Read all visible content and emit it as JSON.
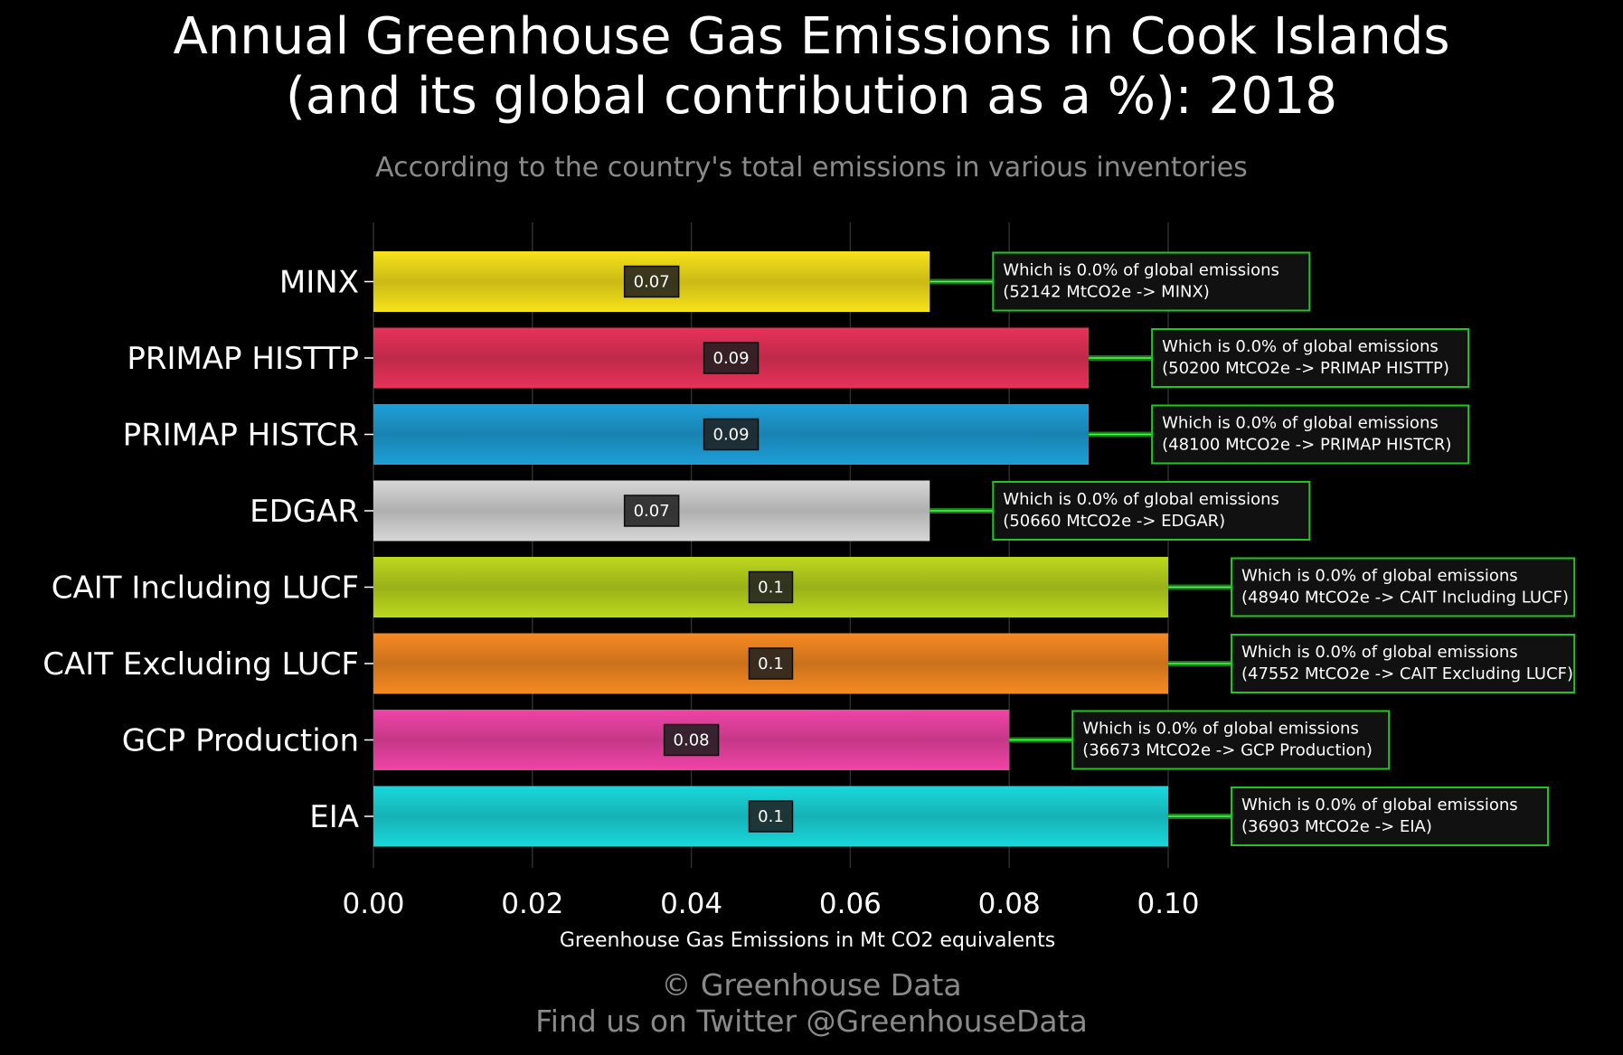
{
  "title_line1": "Annual Greenhouse Gas Emissions in Cook Islands",
  "title_line2": "(and its global contribution as a %): 2018",
  "subtitle": "According to the country's total emissions in various inventories",
  "footer_line1": "© Greenhouse Data",
  "footer_line2": "Find us on Twitter @GreenhouseData",
  "chart_data": {
    "type": "bar",
    "orientation": "horizontal",
    "xlabel": "Greenhouse Gas Emissions in Mt CO2 equivalents",
    "xlim": [
      0,
      0.1
    ],
    "xticks": [
      "0.00",
      "0.02",
      "0.04",
      "0.06",
      "0.08",
      "0.10"
    ],
    "grid": "vertical",
    "bars": [
      {
        "category": "MINX",
        "value": 0.07,
        "label": "0.07",
        "color": "#f7e21a",
        "annotation": [
          "Which is 0.0% of global emissions",
          "(52142 MtCO2e -> MINX)"
        ]
      },
      {
        "category": "PRIMAP HISTTP",
        "value": 0.09,
        "label": "0.09",
        "color": "#e8325a",
        "annotation": [
          "Which is 0.0% of global emissions",
          "(50200 MtCO2e -> PRIMAP HISTTP)"
        ]
      },
      {
        "category": "PRIMAP HISTCR",
        "value": 0.09,
        "label": "0.09",
        "color": "#1e9fd8",
        "annotation": [
          "Which is 0.0% of global emissions",
          "(48100 MtCO2e -> PRIMAP HISTCR)"
        ]
      },
      {
        "category": "EDGAR",
        "value": 0.07,
        "label": "0.07",
        "color": "#d6d6d6",
        "annotation": [
          "Which is 0.0% of global emissions",
          "(50660 MtCO2e -> EDGAR)"
        ]
      },
      {
        "category": "CAIT Including LUCF",
        "value": 0.1,
        "label": "0.1",
        "color": "#bcd81e",
        "annotation": [
          "Which is 0.0% of global emissions",
          "(48940 MtCO2e -> CAIT Including LUCF)"
        ]
      },
      {
        "category": "CAIT Excluding LUCF",
        "value": 0.1,
        "label": "0.1",
        "color": "#f78a22",
        "annotation": [
          "Which is 0.0% of global emissions",
          "(47552 MtCO2e -> CAIT Excluding LUCF)"
        ]
      },
      {
        "category": "GCP Production",
        "value": 0.08,
        "label": "0.08",
        "color": "#f044a6",
        "annotation": [
          "Which is 0.0% of global emissions",
          "(36673 MtCO2e -> GCP Production)"
        ]
      },
      {
        "category": "EIA",
        "value": 0.1,
        "label": "0.1",
        "color": "#1ad8dc",
        "annotation": [
          "Which is 0.0% of global emissions",
          "(36903 MtCO2e -> EIA)"
        ]
      }
    ]
  }
}
